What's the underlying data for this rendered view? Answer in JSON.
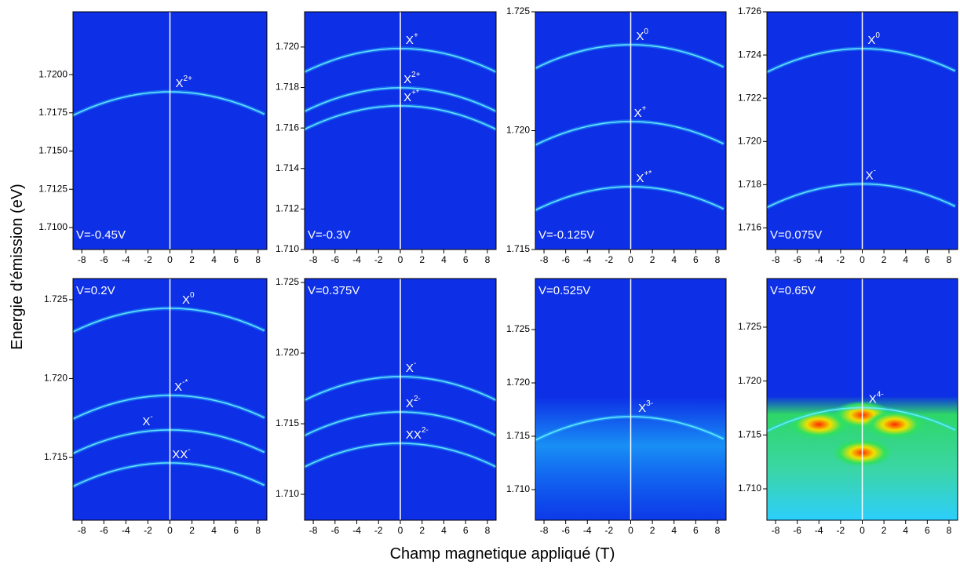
{
  "xlabel": "Champ magnetique appliqué (T)",
  "ylabel": "Energie d'émission (eV)",
  "chart_data": [
    {
      "type": "heatmap",
      "voltage_label": "V=-0.45V",
      "zero_line": true,
      "xlim": [
        -8.8,
        8.8
      ],
      "xticks": [
        -8,
        -6,
        -4,
        -2,
        0,
        2,
        4,
        6,
        8
      ],
      "ylim": [
        1.70856,
        1.72411
      ],
      "yticks": [
        {
          "value": 1.71,
          "label": "1.7100"
        },
        1.7125,
        {
          "value": 1.715,
          "label": "1.7150"
        },
        1.7175,
        {
          "value": 1.72,
          "label": "1.7200"
        }
      ],
      "annotations": [
        {
          "text": "X",
          "sup": "2+",
          "x": 0.5,
          "y": 1.71949
        }
      ]
    },
    {
      "type": "heatmap",
      "voltage_label": "V=-0.3V",
      "zero_line": true,
      "xlim": [
        -8.8,
        8.8
      ],
      "xticks": [
        -8,
        -6,
        -4,
        -2,
        0,
        2,
        4,
        6,
        8
      ],
      "ylim": [
        1.71,
        1.72174
      ],
      "yticks": [
        {
          "value": 1.71,
          "label": "1.710"
        },
        1.712,
        1.714,
        1.716,
        1.718,
        {
          "value": 1.72,
          "label": "1.720"
        }
      ],
      "annotations": [
        {
          "text": "X",
          "sup": "+",
          "x": 0.5,
          "y": 1.72039
        },
        {
          "text": "X",
          "sup": "2+",
          "x": 0.3,
          "y": 1.71845
        },
        {
          "text": "X",
          "sup": "+*",
          "x": 0.3,
          "y": 1.71756
        }
      ]
    },
    {
      "type": "heatmap",
      "voltage_label": "V=-0.125V",
      "zero_line": true,
      "xlim": [
        -8.8,
        8.8
      ],
      "xticks": [
        -8,
        -6,
        -4,
        -2,
        0,
        2,
        4,
        6,
        8
      ],
      "ylim": [
        1.715,
        1.725
      ],
      "yticks": [
        1.715,
        {
          "value": 1.72,
          "label": "1.720"
        },
        1.725
      ],
      "annotations": [
        {
          "text": "X",
          "sup": "0",
          "x": 0.5,
          "y": 1.72401
        },
        {
          "text": "X",
          "sup": "+",
          "x": 0.3,
          "y": 1.72078
        },
        {
          "text": "X",
          "sup": "+*",
          "x": 0.5,
          "y": 1.71804
        }
      ]
    },
    {
      "type": "heatmap",
      "voltage_label": "V=0.075V",
      "zero_line": true,
      "xlim": [
        -8.8,
        8.8
      ],
      "xticks": [
        -8,
        -6,
        -4,
        -2,
        0,
        2,
        4,
        6,
        8
      ],
      "ylim": [
        1.715,
        1.726
      ],
      "yticks": [
        1.716,
        1.718,
        {
          "value": 1.72,
          "label": "1.720"
        },
        1.722,
        1.724,
        1.726
      ],
      "annotations": [
        {
          "text": "X",
          "sup": "0",
          "x": 0.5,
          "y": 1.72473
        },
        {
          "text": "X",
          "sup": "-",
          "x": 0.3,
          "y": 1.71847
        }
      ]
    },
    {
      "type": "heatmap",
      "voltage_label": "V=0.2V",
      "zero_line": true,
      "xlim": [
        -8.8,
        8.8
      ],
      "xticks": [
        -8,
        -6,
        -4,
        -2,
        0,
        2,
        4,
        6,
        8
      ],
      "ylim": [
        1.71102,
        1.72634
      ],
      "yticks": [
        1.715,
        {
          "value": 1.72,
          "label": "1.720"
        },
        1.725
      ],
      "annotations": [
        {
          "text": "X",
          "sup": "0",
          "x": 1.1,
          "y": 1.72505
        },
        {
          "text": "X",
          "sup": "-*",
          "x": 0.4,
          "y": 1.71953
        },
        {
          "text": "X",
          "sup": "-",
          "x": -2.5,
          "y": 1.71734
        },
        {
          "text": "XX",
          "sup": "-",
          "x": 0.2,
          "y": 1.71525
        }
      ]
    },
    {
      "type": "heatmap",
      "voltage_label": "V=0.375V",
      "zero_line": true,
      "xlim": [
        -8.8,
        8.8
      ],
      "xticks": [
        -8,
        -6,
        -4,
        -2,
        0,
        2,
        4,
        6,
        8
      ],
      "ylim": [
        1.70817,
        1.72528
      ],
      "yticks": [
        {
          "value": 1.71,
          "label": "1.710"
        },
        1.715,
        {
          "value": 1.72,
          "label": "1.720"
        },
        1.725
      ],
      "annotations": [
        {
          "text": "X",
          "sup": "-",
          "x": 0.5,
          "y": 1.719
        },
        {
          "text": "X",
          "sup": "2-",
          "x": 0.5,
          "y": 1.7165
        },
        {
          "text": "XX",
          "sup": "2-",
          "x": 0.5,
          "y": 1.71428
        }
      ]
    },
    {
      "type": "heatmap",
      "voltage_label": "V=0.525V",
      "zero_line": true,
      "xlim": [
        -8.8,
        8.8
      ],
      "xticks": [
        -8,
        -6,
        -4,
        -2,
        0,
        2,
        4,
        6,
        8
      ],
      "ylim": [
        1.70713,
        1.72978
      ],
      "yticks": [
        {
          "value": 1.71,
          "label": "1.710"
        },
        1.715,
        {
          "value": 1.72,
          "label": "1.720"
        },
        1.725
      ],
      "annotations": [
        {
          "text": "X",
          "sup": "3-",
          "x": 0.7,
          "y": 1.71772
        }
      ]
    },
    {
      "type": "heatmap",
      "voltage_label": "V=0.65V",
      "zero_line": true,
      "xlim": [
        -8.8,
        8.8
      ],
      "xticks": [
        -8,
        -6,
        -4,
        -2,
        0,
        2,
        4,
        6,
        8
      ],
      "ylim": [
        1.70709,
        1.72951
      ],
      "yticks": [
        {
          "value": 1.71,
          "label": "1.710"
        },
        1.715,
        {
          "value": 1.72,
          "label": "1.720"
        },
        1.725
      ],
      "annotations": [
        {
          "text": "X",
          "sup": "4-",
          "x": 0.6,
          "y": 1.7184
        }
      ]
    }
  ]
}
